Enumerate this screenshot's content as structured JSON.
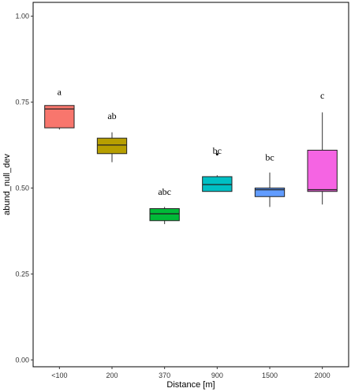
{
  "chart_data": {
    "type": "boxplot",
    "xlabel": "Distance [m]",
    "ylabel": "abund_null_dev",
    "ylim": [
      -0.02,
      1.04
    ],
    "yticks": [
      0.0,
      0.25,
      0.5,
      0.75,
      1.0
    ],
    "ytick_labels": [
      "0.00",
      "0.25",
      "0.50",
      "0.75",
      "1.00"
    ],
    "grid": false,
    "categories": [
      "<100",
      "200",
      "370",
      "900",
      "1500",
      "2000"
    ],
    "boxes": [
      {
        "category": "<100",
        "lower_whisker": 0.67,
        "q1": 0.675,
        "median": 0.73,
        "q3": 0.74,
        "upper_whisker": 0.74,
        "outliers": [],
        "fill": "#F8766D",
        "letter": "a"
      },
      {
        "category": "200",
        "lower_whisker": 0.575,
        "q1": 0.6,
        "median": 0.625,
        "q3": 0.645,
        "upper_whisker": 0.662,
        "outliers": [],
        "fill": "#B79F00",
        "letter": "ab"
      },
      {
        "category": "370",
        "lower_whisker": 0.395,
        "q1": 0.405,
        "median": 0.425,
        "q3": 0.44,
        "upper_whisker": 0.445,
        "outliers": [],
        "fill": "#00BA38",
        "letter": "abc"
      },
      {
        "category": "900",
        "lower_whisker": 0.49,
        "q1": 0.49,
        "median": 0.51,
        "q3": 0.533,
        "upper_whisker": 0.537,
        "outliers": [
          0.598
        ],
        "fill": "#00BFC4",
        "letter": "bc"
      },
      {
        "category": "1500",
        "lower_whisker": 0.445,
        "q1": 0.475,
        "median": 0.495,
        "q3": 0.5,
        "upper_whisker": 0.545,
        "outliers": [],
        "fill": "#619CFF",
        "letter": "bc"
      },
      {
        "category": "2000",
        "lower_whisker": 0.452,
        "q1": 0.49,
        "median": 0.495,
        "q3": 0.61,
        "upper_whisker": 0.72,
        "outliers": [],
        "fill": "#F564E3",
        "letter": "c"
      }
    ],
    "letter_values": [
      0.77,
      0.7,
      0.48,
      0.6,
      0.58,
      0.76
    ]
  }
}
